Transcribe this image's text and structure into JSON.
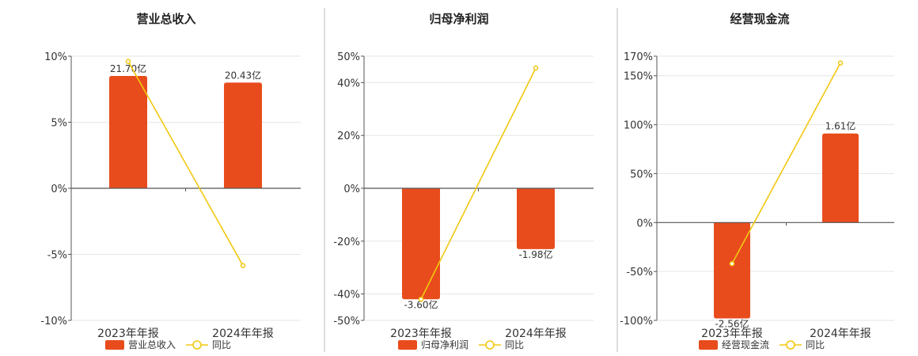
{
  "colors": {
    "bar": "#E84C1C",
    "line": "#F2C811",
    "grid": "#e6e6e6",
    "axis": "#555555",
    "separator": "#bbbbbb"
  },
  "chart_data": [
    {
      "type": "bar",
      "title": "营业总收入",
      "categories": [
        "2023年年报",
        "2024年年报"
      ],
      "yticks": [
        "10%",
        "5%",
        "0%",
        "-5%",
        "-10%"
      ],
      "ylim": [
        -10,
        10
      ],
      "series": [
        {
          "name": "营业总收入",
          "type": "bar",
          "values": [
            8.5,
            8.0
          ],
          "labels": [
            "21.70亿",
            "20.43亿"
          ]
        },
        {
          "name": "同比",
          "type": "line",
          "values": [
            9.6,
            -5.85
          ]
        }
      ]
    },
    {
      "type": "bar",
      "title": "归母净利润",
      "categories": [
        "2023年年报",
        "2024年年报"
      ],
      "yticks": [
        "50%",
        "40%",
        "20%",
        "0%",
        "-20%",
        "-40%",
        "-50%"
      ],
      "ylim": [
        -50,
        50
      ],
      "series": [
        {
          "name": "归母净利润",
          "type": "bar",
          "values": [
            -42,
            -23
          ],
          "labels": [
            "-3.60亿",
            "-1.98亿"
          ]
        },
        {
          "name": "同比",
          "type": "line",
          "values": [
            -42,
            45.5
          ]
        }
      ]
    },
    {
      "type": "bar",
      "title": "经营现金流",
      "categories": [
        "2023年年报",
        "2024年年报"
      ],
      "yticks": [
        "170%",
        "150%",
        "100%",
        "50%",
        "0%",
        "-50%",
        "-100%"
      ],
      "ylim": [
        -100,
        170
      ],
      "series": [
        {
          "name": "经营现金流",
          "type": "bar",
          "values": [
            -98,
            91
          ],
          "labels": [
            "-2.56亿",
            "1.61亿"
          ]
        },
        {
          "name": "同比",
          "type": "line",
          "values": [
            -42,
            163
          ]
        }
      ]
    }
  ]
}
